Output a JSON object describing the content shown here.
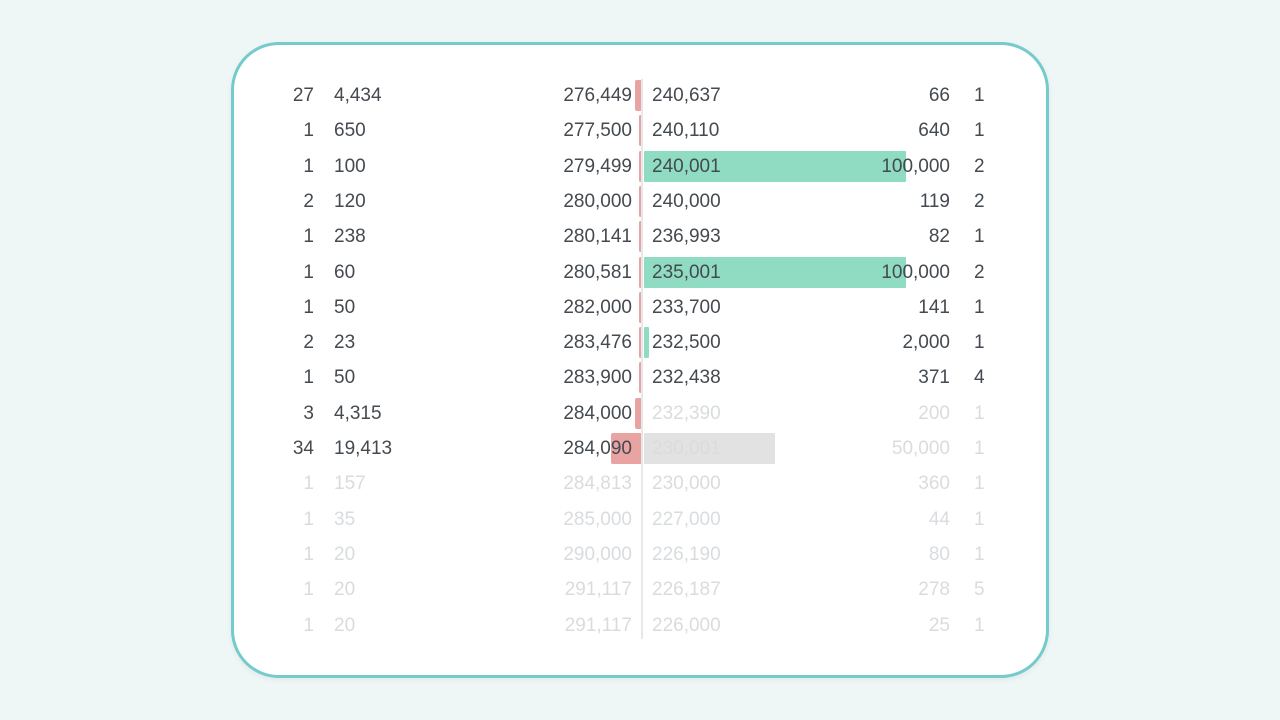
{
  "order_book": {
    "rows": [
      {
        "ask_count": "27",
        "ask_size": "4,434",
        "ask_price": "276,449",
        "bid_price": "240,637",
        "bid_size": "66",
        "bid_count": "1",
        "ask_depth": 0.03,
        "bid_depth": 0,
        "bid_color": "green",
        "faded": false
      },
      {
        "ask_count": "1",
        "ask_size": "650",
        "ask_price": "277,500",
        "bid_price": "240,110",
        "bid_size": "640",
        "bid_count": "1",
        "ask_depth": 0.008,
        "bid_depth": 0,
        "bid_color": "green",
        "faded": false
      },
      {
        "ask_count": "1",
        "ask_size": "100",
        "ask_price": "279,499",
        "bid_price": "240,001",
        "bid_size": "100,000",
        "bid_count": "2",
        "ask_depth": 0.003,
        "bid_depth": 1.0,
        "bid_color": "green",
        "faded": false
      },
      {
        "ask_count": "2",
        "ask_size": "120",
        "ask_price": "280,000",
        "bid_price": "240,000",
        "bid_size": "119",
        "bid_count": "2",
        "ask_depth": 0.003,
        "bid_depth": 0,
        "bid_color": "green",
        "faded": false
      },
      {
        "ask_count": "1",
        "ask_size": "238",
        "ask_price": "280,141",
        "bid_price": "236,993",
        "bid_size": "82",
        "bid_count": "1",
        "ask_depth": 0.004,
        "bid_depth": 0,
        "bid_color": "green",
        "faded": false
      },
      {
        "ask_count": "1",
        "ask_size": "60",
        "ask_price": "280,581",
        "bid_price": "235,001",
        "bid_size": "100,000",
        "bid_count": "2",
        "ask_depth": 0.003,
        "bid_depth": 1.0,
        "bid_color": "green",
        "faded": false
      },
      {
        "ask_count": "1",
        "ask_size": "50",
        "ask_price": "282,000",
        "bid_price": "233,700",
        "bid_size": "141",
        "bid_count": "1",
        "ask_depth": 0.003,
        "bid_depth": 0,
        "bid_color": "green",
        "faded": false
      },
      {
        "ask_count": "2",
        "ask_size": "23",
        "ask_price": "283,476",
        "bid_price": "232,500",
        "bid_size": "2,000",
        "bid_count": "1",
        "ask_depth": 0.002,
        "bid_depth": 0.02,
        "bid_color": "green",
        "faded": false
      },
      {
        "ask_count": "1",
        "ask_size": "50",
        "ask_price": "283,900",
        "bid_price": "232,438",
        "bid_size": "371",
        "bid_count": "4",
        "ask_depth": 0.003,
        "bid_depth": 0,
        "bid_color": "green",
        "faded": false
      },
      {
        "ask_count": "3",
        "ask_size": "4,315",
        "ask_price": "284,000",
        "bid_price": "232,390",
        "bid_size": "200",
        "bid_count": "1",
        "ask_depth": 0.03,
        "bid_depth": 0,
        "bid_color": "green",
        "faded": false,
        "bid_faded": true
      },
      {
        "ask_count": "34",
        "ask_size": "19,413",
        "ask_price": "284,090",
        "bid_price": "230,001",
        "bid_size": "50,000",
        "bid_count": "1",
        "ask_depth": 0.13,
        "bid_depth": 0.5,
        "bid_color": "grey",
        "faded": false,
        "bid_faded": true
      },
      {
        "ask_count": "1",
        "ask_size": "157",
        "ask_price": "284,813",
        "bid_price": "230,000",
        "bid_size": "360",
        "bid_count": "1",
        "ask_depth": 0,
        "bid_depth": 0,
        "bid_color": "green",
        "faded": true
      },
      {
        "ask_count": "1",
        "ask_size": "35",
        "ask_price": "285,000",
        "bid_price": "227,000",
        "bid_size": "44",
        "bid_count": "1",
        "ask_depth": 0,
        "bid_depth": 0,
        "bid_color": "green",
        "faded": true
      },
      {
        "ask_count": "1",
        "ask_size": "20",
        "ask_price": "290,000",
        "bid_price": "226,190",
        "bid_size": "80",
        "bid_count": "1",
        "ask_depth": 0,
        "bid_depth": 0,
        "bid_color": "green",
        "faded": true
      },
      {
        "ask_count": "1",
        "ask_size": "20",
        "ask_price": "291,117",
        "bid_price": "226,187",
        "bid_size": "278",
        "bid_count": "5",
        "ask_depth": 0,
        "bid_depth": 0,
        "bid_color": "green",
        "faded": true
      },
      {
        "ask_count": "1",
        "ask_size": "20",
        "ask_price": "291,117",
        "bid_price": "226,000",
        "bid_size": "25",
        "bid_count": "1",
        "ask_depth": 0,
        "bid_depth": 0,
        "bid_color": "green",
        "faded": true
      }
    ],
    "colors": {
      "ask_bar": "#e9a3a3",
      "bid_bar": "#8fdcc2",
      "bid_bar_inactive": "#e2e2e2",
      "frame": "#74cbcb"
    }
  }
}
